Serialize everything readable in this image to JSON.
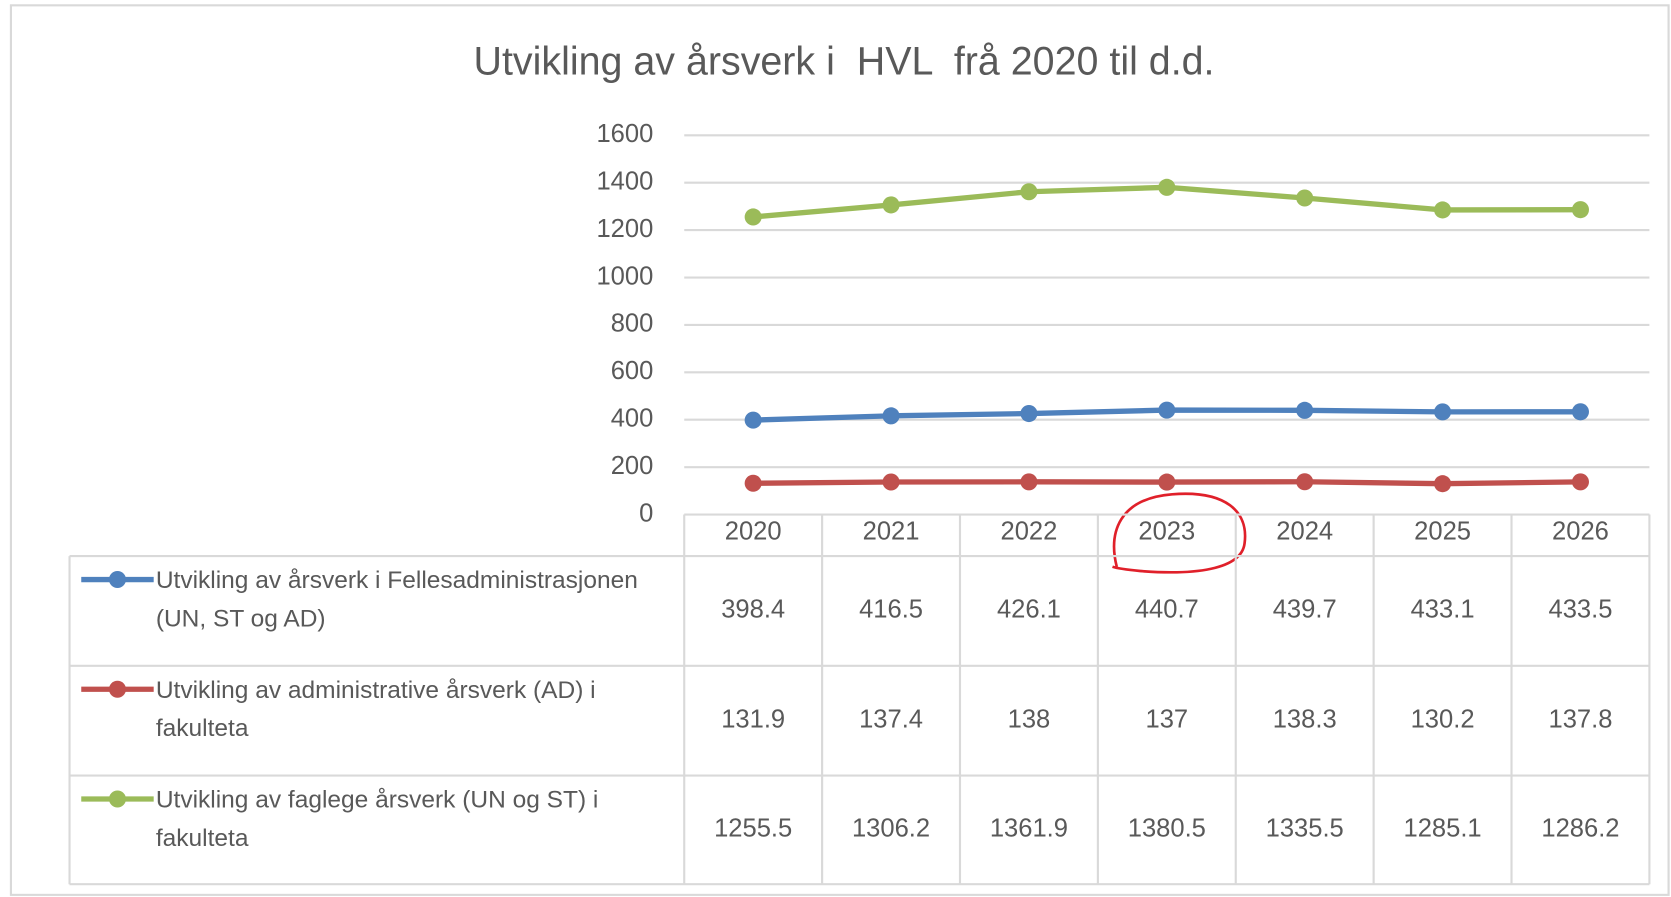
{
  "chart_data": {
    "type": "line",
    "title": "Utvikling av årsverk i  HVL  frå 2020 til d.d.",
    "categories": [
      "2020",
      "2021",
      "2022",
      "2023",
      "2024",
      "2025",
      "2026"
    ],
    "series": [
      {
        "name": "Utvikling av årsverk i Fellesadministrasjonen (UN, ST og AD)",
        "color": "#4f81bd",
        "values": [
          398.4,
          416.5,
          426.1,
          440.7,
          439.7,
          433.1,
          433.5
        ]
      },
      {
        "name": "Utvikling av administrative årsverk (AD) i fakulteta",
        "color": "#c0504d",
        "values": [
          131.9,
          137.4,
          138,
          137,
          138.3,
          130.2,
          137.8
        ]
      },
      {
        "name": "Utvikling av faglege årsverk (UN og ST) i fakulteta",
        "color": "#9bbb59",
        "values": [
          1255.5,
          1306.2,
          1361.9,
          1380.5,
          1335.5,
          1285.1,
          1286.2
        ]
      }
    ],
    "ylim": [
      0,
      1600
    ],
    "yticks": [
      0,
      200,
      400,
      600,
      800,
      1000,
      1200,
      1400,
      1600
    ],
    "grid": true
  }
}
